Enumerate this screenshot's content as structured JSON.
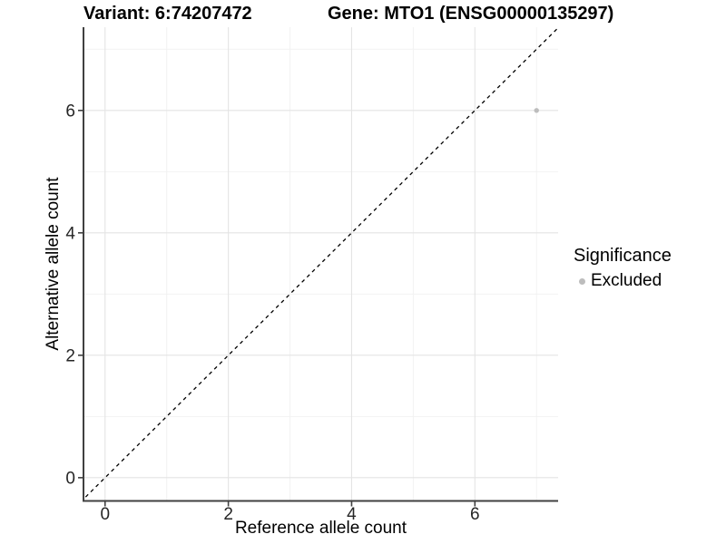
{
  "header": {
    "variant_title": "Variant: 6:74207472",
    "gene_title": "Gene: MTO1 (ENSG00000135297)"
  },
  "chart_data": {
    "type": "scatter",
    "xlabel": "Reference allele count",
    "ylabel": "Alternative allele count",
    "xlim": [
      -0.35,
      7.35
    ],
    "ylim": [
      -0.38,
      7.36
    ],
    "x_major_ticks": [
      0,
      2,
      4,
      6
    ],
    "y_major_ticks": [
      0,
      2,
      4,
      6
    ],
    "x_minor_gridlines": [
      1,
      3,
      5,
      7
    ],
    "y_minor_gridlines": [
      1,
      3,
      5,
      7
    ],
    "grid": "major+minor",
    "reference_line": {
      "style": "dashed",
      "slope": 1,
      "intercept": 0,
      "color": "#000000"
    },
    "series": [
      {
        "name": "Excluded",
        "color": "#bdbdbd",
        "points": [
          {
            "x": 7,
            "y": 6
          }
        ]
      }
    ],
    "legend": {
      "title": "Significance",
      "position": "right",
      "items": [
        {
          "label": "Excluded",
          "color": "#bdbdbd"
        }
      ]
    },
    "colors": {
      "background": "#ffffff",
      "axis_line": "#404040",
      "grid_major": "#e4e4e4",
      "grid_minor": "#f2f2f2",
      "tick_text": "#262626",
      "title_text": "#000000"
    }
  }
}
